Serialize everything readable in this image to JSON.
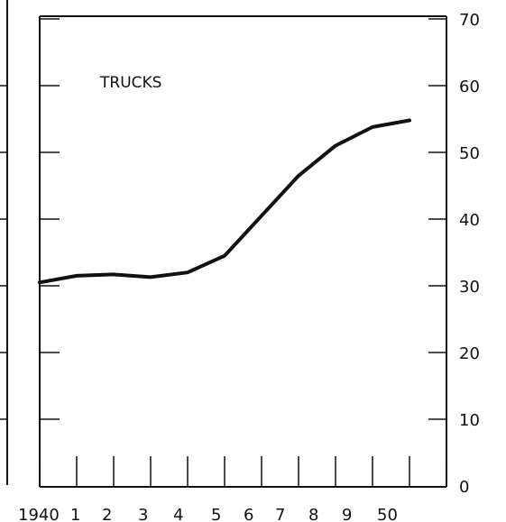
{
  "chart_data": {
    "type": "line",
    "title": "",
    "annotation": "TRUCKS",
    "xlabel": "",
    "ylabel": "",
    "x": [
      1940,
      1941,
      1942,
      1943,
      1944,
      1945,
      1946,
      1947,
      1948,
      1949,
      1950
    ],
    "x_tick_labels": [
      "1940",
      "1",
      "2",
      "3",
      "4",
      "5",
      "6",
      "7",
      "8",
      "9",
      "50"
    ],
    "y_tick_labels": [
      "0",
      "10",
      "20",
      "30",
      "40",
      "50",
      "60",
      "70"
    ],
    "ylim": [
      0,
      70
    ],
    "xlim": [
      1940,
      1951
    ],
    "grid": false,
    "series": [
      {
        "values": [
          30.5,
          31.5,
          31.7,
          31.3,
          32,
          34.5,
          40.5,
          46.5,
          51,
          53.8,
          54.8
        ]
      }
    ],
    "colors": {
      "line": "#111111",
      "axis": "#111111",
      "background": "#ffffff"
    }
  }
}
